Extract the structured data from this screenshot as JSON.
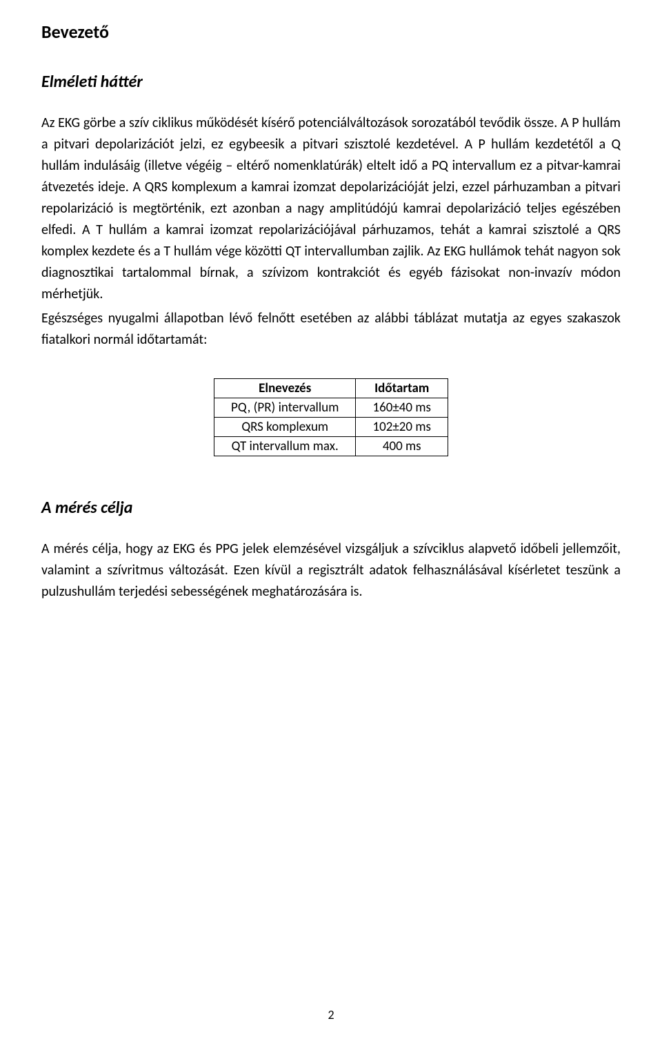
{
  "title": "Bevezető",
  "section1": {
    "heading": "Elméleti háttér",
    "para1": "Az EKG görbe a szív ciklikus működését kísérő potenciálváltozások sorozatából tevődik össze. A P hullám a pitvari depolarizációt jelzi, ez egybeesik a pitvari szisztolé kezdetével. A P hullám kezdetétől a Q hullám indulásáig (illetve végéig – eltérő nomenklatúrák) eltelt idő a PQ intervallum ez a pitvar-kamrai átvezetés ideje. A QRS komplexum a kamrai izomzat depolarizációját jelzi, ezzel párhuzamban a pitvari repolarizáció is megtörténik, ezt azonban a nagy amplitúdójú kamrai depolarizáció teljes egészében elfedi. A T hullám a kamrai izomzat repolarizációjával párhuzamos, tehát a kamrai szisztolé a QRS komplex kezdete és a T hullám vége közötti QT intervallumban zajlik. Az EKG hullámok tehát nagyon sok diagnosztikai tartalommal bírnak, a szívizom kontrakciót és egyéb fázisokat non-invazív módon mérhetjük.",
    "para2": "Egészséges nyugalmi állapotban lévő felnőtt esetében az alábbi táblázat mutatja az egyes szakaszok fiatalkori normál időtartamát:"
  },
  "table": {
    "columns": [
      "Elnevezés",
      "Időtartam"
    ],
    "rows": [
      [
        "PQ, (PR) intervallum",
        "160±40 ms"
      ],
      [
        "QRS komplexum",
        "102±20 ms"
      ],
      [
        "QT intervallum max.",
        "400 ms"
      ]
    ],
    "col_align": [
      "center",
      "center"
    ],
    "border_color": "#000000",
    "font_size_pt": 14
  },
  "section2": {
    "heading": "A mérés célja",
    "para1": "A mérés célja, hogy az EKG és PPG jelek elemzésével vizsgáljuk a szívciklus alapvető időbeli jellemzőit, valamint a szívritmus változását. Ezen kívül a regisztrált adatok felhasználásával kísérletet teszünk a pulzushullám terjedési sebességének meghatározására is."
  },
  "page_number": "2",
  "colors": {
    "text": "#000000",
    "background": "#ffffff",
    "table_border": "#000000"
  },
  "typography": {
    "title_fontsize_pt": 20,
    "section_fontsize_pt": 18,
    "body_fontsize_pt": 15,
    "font_family": "Segoe UI / Calibri"
  }
}
